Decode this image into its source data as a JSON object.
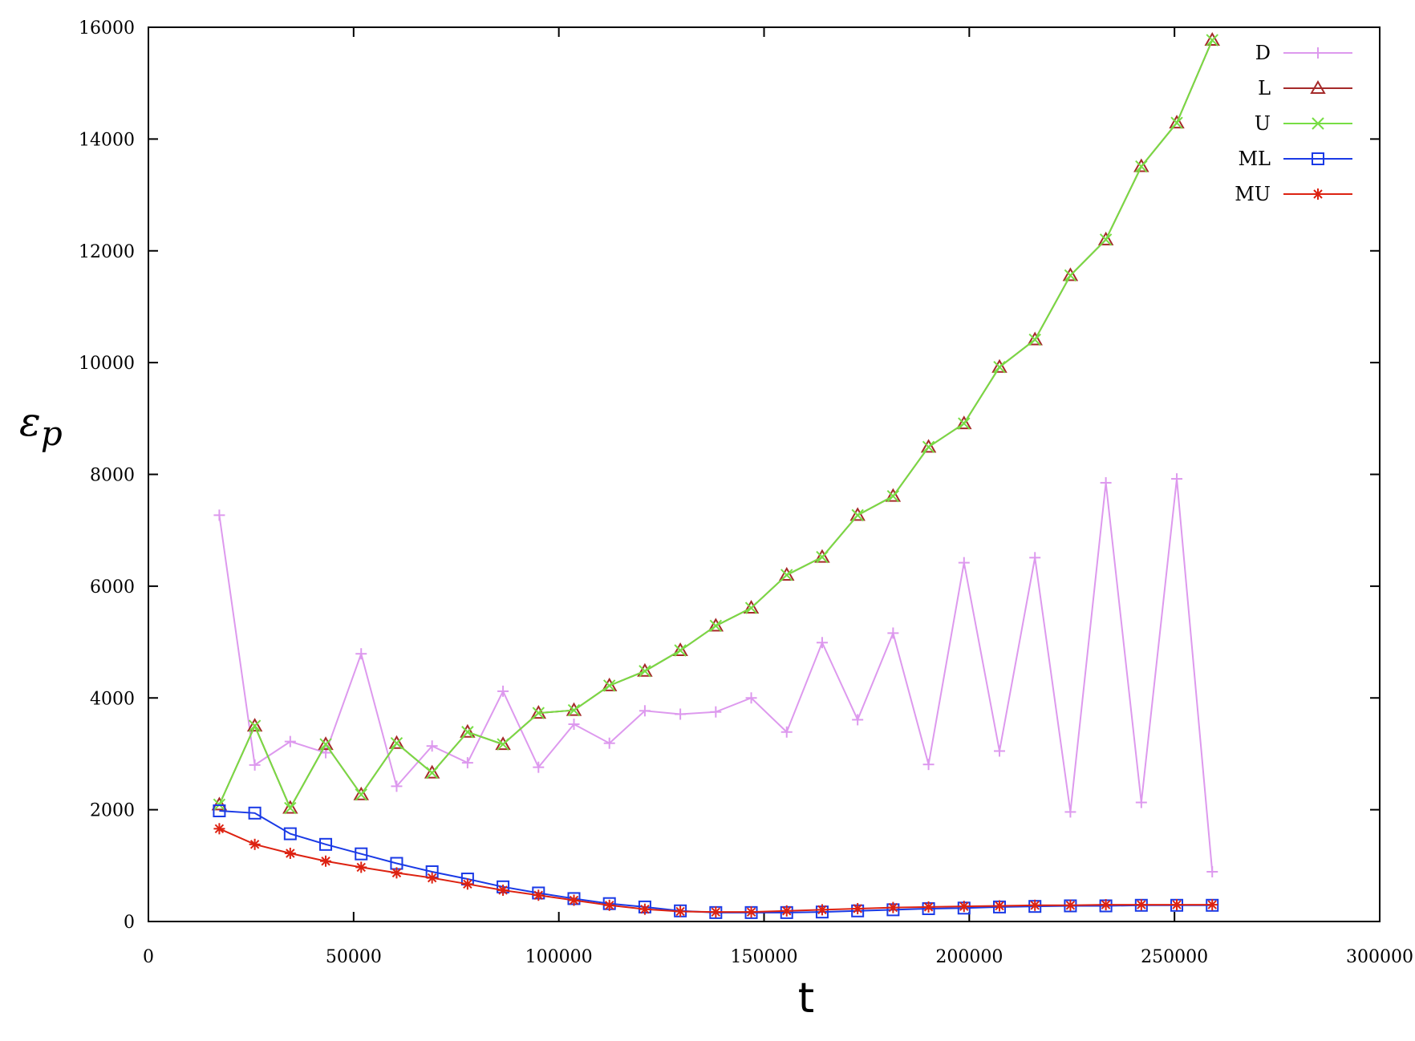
{
  "chart_data": {
    "type": "line",
    "xlabel": "t",
    "ylabel": "εp",
    "ylabel_main": "ε",
    "ylabel_sub": "p",
    "xlim": [
      0,
      300000
    ],
    "ylim": [
      0,
      16000
    ],
    "xticks": [
      0,
      50000,
      100000,
      150000,
      200000,
      250000,
      300000
    ],
    "yticks": [
      0,
      2000,
      4000,
      6000,
      8000,
      10000,
      12000,
      14000,
      16000
    ],
    "xtick_labels": [
      "0",
      "50000",
      "100000",
      "150000",
      "200000",
      "250000",
      "300000"
    ],
    "ytick_labels": [
      "0",
      "2000",
      "4000",
      "6000",
      "8000",
      "10000",
      "12000",
      "14000",
      "16000"
    ],
    "grid": false,
    "legend_position": "top-right",
    "x": [
      17280,
      25920,
      34560,
      43200,
      51840,
      60480,
      69120,
      77760,
      86400,
      95040,
      103680,
      112320,
      120960,
      129600,
      138240,
      146880,
      155520,
      164160,
      172800,
      181440,
      190080,
      198720,
      207360,
      216000,
      224640,
      233280,
      241920,
      250560,
      259200
    ],
    "series": [
      {
        "name": "D",
        "color": "#dd99ee",
        "marker": "plus",
        "values": [
          7270,
          2800,
          3220,
          3020,
          4790,
          2420,
          3140,
          2840,
          4120,
          2760,
          3530,
          3190,
          3770,
          3710,
          3750,
          4000,
          3390,
          4990,
          3610,
          5160,
          2810,
          6420,
          3050,
          6510,
          1960,
          7850,
          2130,
          7920,
          890
        ]
      },
      {
        "name": "L",
        "color": "#a52a2a",
        "marker": "triangle",
        "values": [
          2090,
          3500,
          2030,
          3170,
          2270,
          3190,
          2660,
          3390,
          3170,
          3730,
          3780,
          4220,
          4480,
          4850,
          5290,
          5610,
          6200,
          6520,
          7270,
          7610,
          8490,
          8910,
          9920,
          10410,
          11560,
          12200,
          13510,
          14290,
          15770
        ]
      },
      {
        "name": "U",
        "color": "#77dd44",
        "marker": "x",
        "values": [
          2090,
          3500,
          2030,
          3170,
          2270,
          3190,
          2660,
          3390,
          3170,
          3730,
          3780,
          4220,
          4480,
          4850,
          5290,
          5610,
          6200,
          6520,
          7270,
          7610,
          8490,
          8910,
          9920,
          10410,
          11560,
          12200,
          13510,
          14290,
          15770
        ]
      },
      {
        "name": "ML",
        "color": "#1a3ae6",
        "marker": "square",
        "values": [
          1980,
          1940,
          1570,
          1380,
          1210,
          1040,
          890,
          760,
          620,
          510,
          410,
          320,
          260,
          190,
          160,
          160,
          160,
          170,
          190,
          210,
          230,
          240,
          260,
          270,
          280,
          280,
          290,
          290,
          290
        ]
      },
      {
        "name": "MU",
        "color": "#dd2211",
        "marker": "asterisk",
        "values": [
          1660,
          1380,
          1220,
          1080,
          970,
          870,
          780,
          670,
          560,
          470,
          380,
          290,
          220,
          180,
          170,
          170,
          190,
          210,
          230,
          250,
          260,
          270,
          280,
          290,
          290,
          300,
          300,
          300,
          300
        ]
      }
    ]
  }
}
